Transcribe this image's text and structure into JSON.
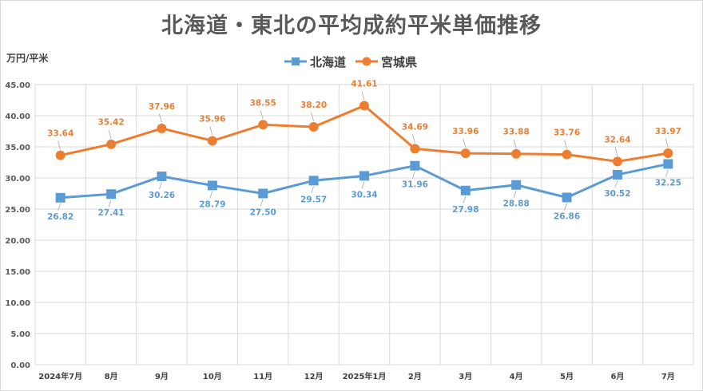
{
  "title": "北海道・東北の平均成約平米単価推移",
  "colors": {
    "hokkaido": "#5b9bd5",
    "miyagi": "#ed7d31",
    "grid": "#d9d9d9",
    "axis_text": "#595959"
  },
  "chart_data": {
    "type": "line",
    "title": "北海道・東北の平均成約平米単価推移",
    "ylabel": "万円/平米",
    "xlabel": "",
    "categories": [
      "2024年7月",
      "8月",
      "9月",
      "10月",
      "11月",
      "12月",
      "2025年1月",
      "2月",
      "3月",
      "4月",
      "5月",
      "6月",
      "7月"
    ],
    "ylim": [
      0,
      45
    ],
    "yticks": [
      "0.00",
      "5.00",
      "10.00",
      "15.00",
      "20.00",
      "25.00",
      "30.00",
      "35.00",
      "40.00",
      "45.00"
    ],
    "grid": true,
    "legend_position": "top",
    "series": [
      {
        "name": "北海道",
        "marker": "square",
        "values": [
          26.82,
          27.41,
          30.26,
          28.79,
          27.5,
          29.57,
          30.34,
          31.96,
          27.98,
          28.88,
          26.86,
          30.52,
          32.25
        ],
        "labels": [
          "26.82",
          "27.41",
          "30.26",
          "28.79",
          "27.50",
          "29.57",
          "30.34",
          "31.96",
          "27.98",
          "28.88",
          "26.86",
          "30.52",
          "32.25"
        ]
      },
      {
        "name": "宮城県",
        "marker": "circle",
        "values": [
          33.64,
          35.42,
          37.96,
          35.96,
          38.55,
          38.2,
          41.61,
          34.69,
          33.96,
          33.88,
          33.76,
          32.64,
          33.97
        ],
        "labels": [
          "33.64",
          "35.42",
          "37.96",
          "35.96",
          "38.55",
          "38.20",
          "41.61",
          "34.69",
          "33.96",
          "33.88",
          "33.76",
          "32.64",
          "33.97"
        ]
      }
    ]
  }
}
